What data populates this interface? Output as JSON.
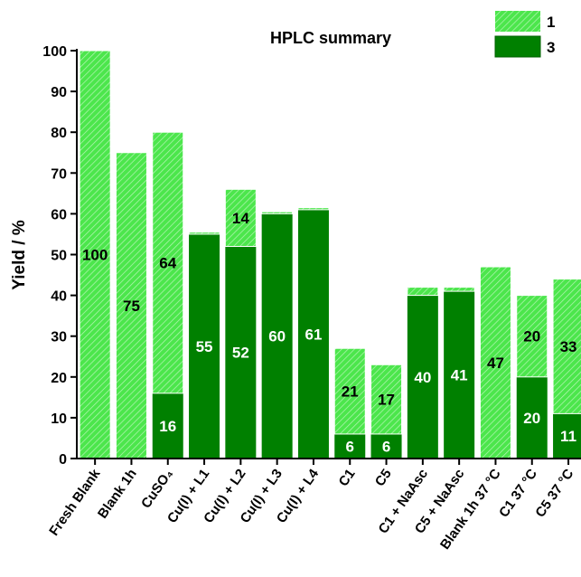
{
  "chart_data": {
    "type": "stacked-bar",
    "title": "HPLC summary",
    "y_label": "Yield / %",
    "categories": [
      "Fresh Blank",
      "Blank 1h",
      "CuSO₄",
      "Cu(I) + L1",
      "Cu(I) + L2",
      "Cu(I) + L3",
      "Cu(I) + L4",
      "C1",
      "C5",
      "C1 + NaAsc",
      "C5 + NaAsc",
      "Blank 1h 37 °C",
      "C1 37 °C",
      "C5 37 °C"
    ],
    "series": [
      {
        "name": "3",
        "color": "#008000",
        "hatch": false,
        "values": [
          0,
          0,
          16,
          55,
          52,
          60,
          61,
          6,
          6,
          40,
          41,
          0,
          20,
          11
        ]
      },
      {
        "name": "1",
        "color": "#4ce64c",
        "hatch": true,
        "values": [
          100,
          75,
          64,
          0.5,
          14,
          0.5,
          0.5,
          21,
          17,
          2,
          1,
          47,
          20,
          33
        ]
      }
    ],
    "ylim": [
      0,
      100
    ],
    "yticks": [
      0,
      10,
      20,
      30,
      40,
      50,
      60,
      70,
      80,
      90,
      100
    ]
  }
}
